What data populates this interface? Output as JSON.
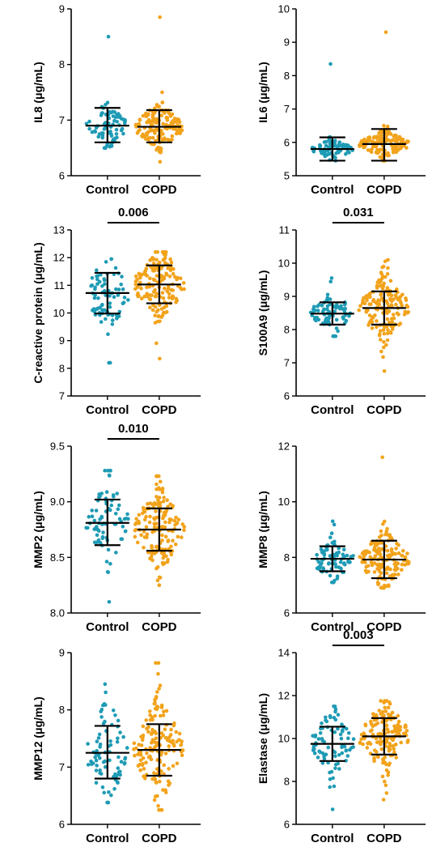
{
  "colors": {
    "control": "#1f9bb5",
    "copd": "#f2a31b"
  },
  "chart_data": [
    {
      "type": "scatter",
      "ylabel": "IL8 (μg/mL)",
      "categories": [
        "Control",
        "COPD"
      ],
      "ylim": [
        6,
        9
      ],
      "yticks": [
        "6",
        "7",
        "8",
        "9"
      ],
      "p_value": "",
      "series": [
        {
          "name": "Control",
          "n": 80,
          "mean": 6.9,
          "sd_low": 6.6,
          "sd_high": 7.22,
          "min": 6.5,
          "max": 8.5,
          "spread": 0.2
        },
        {
          "name": "COPD",
          "n": 160,
          "mean": 6.88,
          "sd_low": 6.6,
          "sd_high": 7.18,
          "min": 6.25,
          "max": 8.85,
          "spread": 0.2
        }
      ]
    },
    {
      "type": "scatter",
      "ylabel": "IL6 (μg/mL)",
      "categories": [
        "Control",
        "COPD"
      ],
      "ylim": [
        5,
        10
      ],
      "yticks": [
        "5",
        "6",
        "7",
        "8",
        "9",
        "10"
      ],
      "p_value": "",
      "series": [
        {
          "name": "Control",
          "n": 80,
          "mean": 5.8,
          "sd_low": 5.45,
          "sd_high": 6.15,
          "min": 5.45,
          "max": 8.35,
          "spread": 0.15
        },
        {
          "name": "COPD",
          "n": 160,
          "mean": 5.95,
          "sd_low": 5.45,
          "sd_high": 6.4,
          "min": 5.45,
          "max": 9.3,
          "spread": 0.2
        }
      ]
    },
    {
      "type": "scatter",
      "ylabel": "C-reactive protein (μg/mL)",
      "categories": [
        "Control",
        "COPD"
      ],
      "ylim": [
        7,
        13
      ],
      "yticks": [
        "7",
        "8",
        "9",
        "10",
        "11",
        "12",
        "13"
      ],
      "p_value": "0.006",
      "series": [
        {
          "name": "Control",
          "n": 80,
          "mean": 10.72,
          "sd_low": 9.98,
          "sd_high": 11.45,
          "min": 8.2,
          "max": 11.95,
          "spread": 0.75
        },
        {
          "name": "COPD",
          "n": 160,
          "mean": 11.03,
          "sd_low": 10.35,
          "sd_high": 11.72,
          "min": 8.35,
          "max": 12.2,
          "spread": 0.7
        }
      ]
    },
    {
      "type": "scatter",
      "ylabel": "S100A9 (μg/mL)",
      "categories": [
        "Control",
        "COPD"
      ],
      "ylim": [
        6,
        11
      ],
      "yticks": [
        "6",
        "7",
        "8",
        "9",
        "10",
        "11"
      ],
      "p_value": "0.031",
      "series": [
        {
          "name": "Control",
          "n": 80,
          "mean": 8.48,
          "sd_low": 8.15,
          "sd_high": 8.82,
          "min": 7.8,
          "max": 9.55,
          "spread": 0.33
        },
        {
          "name": "COPD",
          "n": 160,
          "mean": 8.65,
          "sd_low": 8.15,
          "sd_high": 9.15,
          "min": 6.75,
          "max": 10.1,
          "spread": 0.5
        }
      ]
    },
    {
      "type": "scatter",
      "ylabel": "MMP2 (μg/mL)",
      "categories": [
        "Control",
        "COPD"
      ],
      "ylim": [
        8.0,
        9.5
      ],
      "yticks": [
        "8.0",
        "8.5",
        "9.0",
        "9.5"
      ],
      "p_value": "0.010",
      "series": [
        {
          "name": "Control",
          "n": 80,
          "mean": 8.81,
          "sd_low": 8.61,
          "sd_high": 9.02,
          "min": 8.1,
          "max": 9.28,
          "spread": 0.2
        },
        {
          "name": "COPD",
          "n": 160,
          "mean": 8.75,
          "sd_low": 8.56,
          "sd_high": 8.94,
          "min": 8.25,
          "max": 9.23,
          "spread": 0.19
        }
      ]
    },
    {
      "type": "scatter",
      "ylabel": "MMP8 (μg/mL)",
      "categories": [
        "Control",
        "COPD"
      ],
      "ylim": [
        6,
        12
      ],
      "yticks": [
        "6",
        "8",
        "10",
        "12"
      ],
      "p_value": "",
      "series": [
        {
          "name": "Control",
          "n": 80,
          "mean": 7.95,
          "sd_low": 7.5,
          "sd_high": 8.4,
          "min": 7.1,
          "max": 9.3,
          "spread": 0.42
        },
        {
          "name": "COPD",
          "n": 160,
          "mean": 7.92,
          "sd_low": 7.25,
          "sd_high": 8.6,
          "min": 6.9,
          "max": 11.6,
          "spread": 0.5
        }
      ]
    },
    {
      "type": "scatter",
      "ylabel": "MMP12 (μg/mL)",
      "categories": [
        "Control",
        "COPD"
      ],
      "ylim": [
        6,
        9
      ],
      "yticks": [
        "6",
        "7",
        "8",
        "9"
      ],
      "p_value": "",
      "series": [
        {
          "name": "Control",
          "n": 80,
          "mean": 7.25,
          "sd_low": 6.8,
          "sd_high": 7.72,
          "min": 6.38,
          "max": 8.45,
          "spread": 0.45
        },
        {
          "name": "COPD",
          "n": 160,
          "mean": 7.3,
          "sd_low": 6.85,
          "sd_high": 7.75,
          "min": 6.25,
          "max": 8.82,
          "spread": 0.45
        }
      ]
    },
    {
      "type": "scatter",
      "ylabel": "Elastase (μg/mL)",
      "categories": [
        "Control",
        "COPD"
      ],
      "ylim": [
        6,
        14
      ],
      "yticks": [
        "6",
        "8",
        "10",
        "12",
        "14"
      ],
      "p_value": "0.003",
      "series": [
        {
          "name": "Control",
          "n": 80,
          "mean": 9.75,
          "sd_low": 8.95,
          "sd_high": 10.55,
          "min": 6.7,
          "max": 11.5,
          "spread": 0.8
        },
        {
          "name": "COPD",
          "n": 160,
          "mean": 10.1,
          "sd_low": 9.25,
          "sd_high": 10.95,
          "min": 7.15,
          "max": 11.75,
          "spread": 0.85
        }
      ]
    }
  ]
}
